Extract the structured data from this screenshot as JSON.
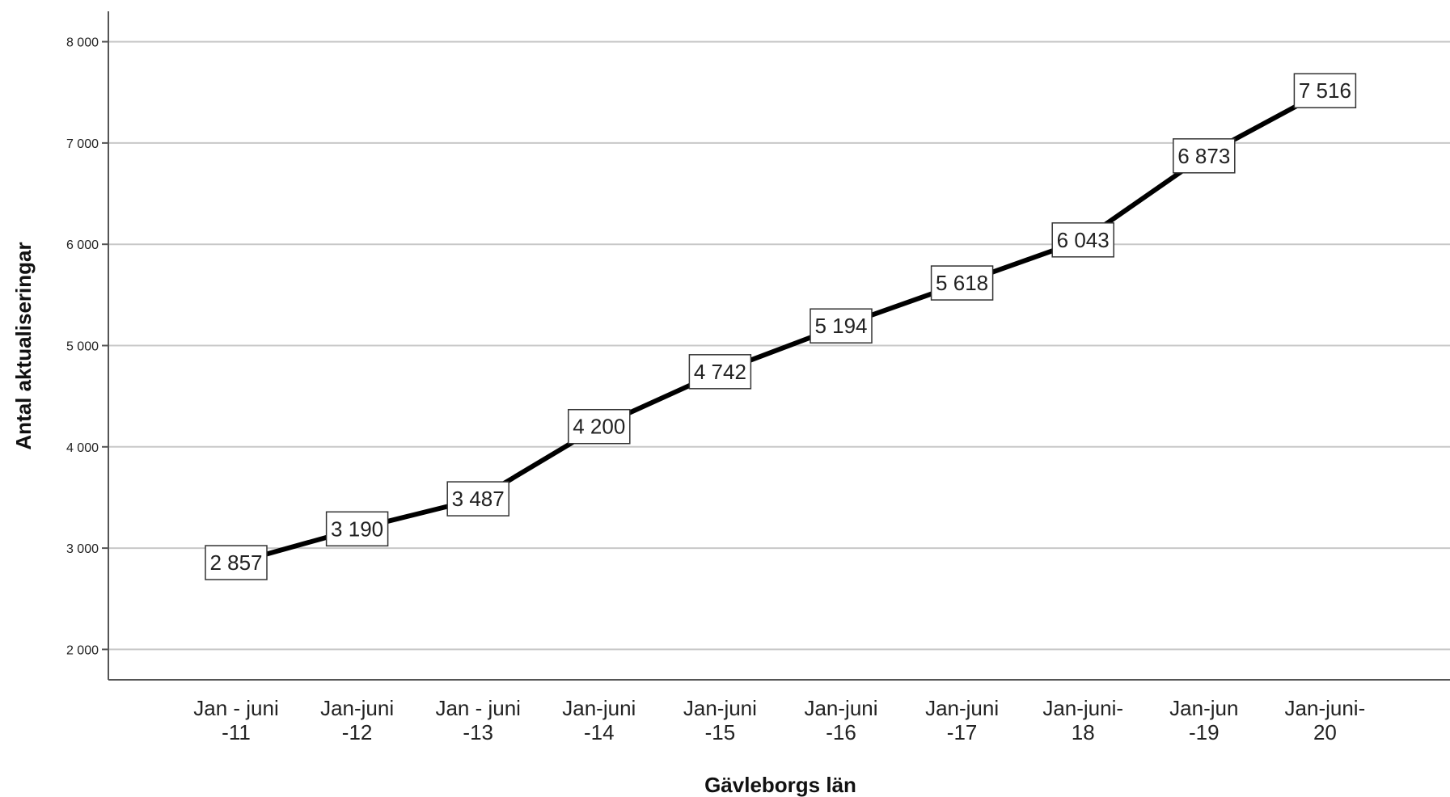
{
  "chart_data": {
    "type": "line",
    "xlabel": "Gävleborgs län",
    "ylabel": "Antal aktualiseringar",
    "ylim": [
      1700,
      8300
    ],
    "yticks": [
      2000,
      3000,
      4000,
      5000,
      6000,
      7000,
      8000
    ],
    "ytick_labels": [
      "2 000",
      "3 000",
      "4 000",
      "5 000",
      "6 000",
      "7 000",
      "8 000"
    ],
    "grid": true,
    "categories": [
      [
        "Jan - juni",
        "-11"
      ],
      [
        "Jan-juni",
        "-12"
      ],
      [
        "Jan - juni",
        "-13"
      ],
      [
        "Jan-juni",
        "-14"
      ],
      [
        "Jan-juni",
        "-15"
      ],
      [
        "Jan-juni",
        "-16"
      ],
      [
        "Jan-juni",
        "-17"
      ],
      [
        "Jan-juni-",
        "18"
      ],
      [
        "Jan-jun",
        "-19"
      ],
      [
        "Jan-juni-",
        "20"
      ]
    ],
    "series": [
      {
        "values": [
          2857,
          3190,
          3487,
          4200,
          4742,
          5194,
          5618,
          6043,
          6873,
          7516
        ],
        "labels": [
          "2 857",
          "3 190",
          "3 487",
          "4 200",
          "4 742",
          "5 194",
          "5 618",
          "6 043",
          "6 873",
          "7 516"
        ],
        "color": "#000000"
      }
    ]
  }
}
